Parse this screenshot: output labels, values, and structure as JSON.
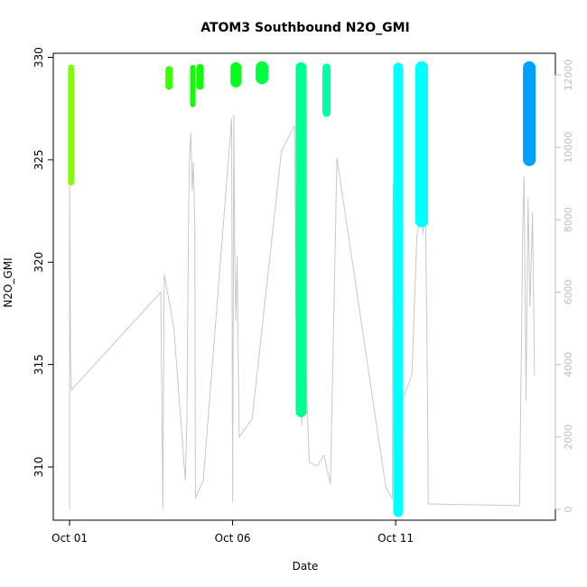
{
  "chart_data": {
    "type": "scatter",
    "title": "ATOM3 Southbound N2O_GMI",
    "xlabel": "Date",
    "ylabel": "N2O_GMI",
    "x_ticks": [
      "Oct 01",
      "Oct 06",
      "Oct 11"
    ],
    "x_tick_days": [
      1,
      6,
      11
    ],
    "xlim_days": [
      0.5,
      15.9
    ],
    "y_ticks": [
      310,
      315,
      320,
      325,
      330
    ],
    "ylim": [
      307.4,
      330.2
    ],
    "y2_ticks": [
      0,
      2000,
      4000,
      6000,
      8000,
      10000,
      12000
    ],
    "y2lim": [
      -300,
      12600
    ],
    "grid": false,
    "colors": {
      "axis": "#000000",
      "right_axis": "#bdbdbd",
      "altitude_line": "#c8c8c8"
    },
    "series": [
      {
        "day": 1.05,
        "y_min": 323.9,
        "y_max": 329.5,
        "color": "#7fff00",
        "width": 7
      },
      {
        "day": 4.05,
        "y_min": 328.6,
        "y_max": 329.4,
        "color": "#3cff00",
        "width": 8
      },
      {
        "day": 4.78,
        "y_min": 327.7,
        "y_max": 329.5,
        "color": "#10ff00",
        "width": 6
      },
      {
        "day": 5.0,
        "y_min": 328.6,
        "y_max": 329.5,
        "color": "#10ff00",
        "width": 8
      },
      {
        "day": 6.1,
        "y_min": 328.8,
        "y_max": 329.5,
        "color": "#00ff1a",
        "width": 12
      },
      {
        "day": 6.9,
        "y_min": 329.0,
        "y_max": 329.5,
        "color": "#00ff40",
        "width": 14
      },
      {
        "day": 8.1,
        "y_min": 312.7,
        "y_max": 329.5,
        "color": "#00ff90",
        "width": 12
      },
      {
        "day": 8.88,
        "y_min": 327.3,
        "y_max": 329.5,
        "color": "#00ffa5",
        "width": 9
      },
      {
        "day": 11.08,
        "y_min": 307.8,
        "y_max": 329.5,
        "color": "#00ffff",
        "width": 11
      },
      {
        "day": 11.8,
        "y_min": 322.0,
        "y_max": 329.5,
        "color": "#00ffff",
        "width": 14
      },
      {
        "day": 15.1,
        "y_min": 325.0,
        "y_max": 329.5,
        "color": "#00a0ff",
        "width": 14
      }
    ],
    "altitude_m": {
      "x": [
        1.0,
        1.0,
        1.03,
        1.06,
        3.8,
        3.86,
        3.9,
        4.2,
        4.55,
        4.6,
        4.65,
        4.68,
        4.72,
        4.76,
        4.8,
        4.84,
        4.86,
        5.1,
        5.97,
        6.0,
        6.04,
        6.07,
        6.1,
        6.14,
        6.2,
        6.6,
        7.5,
        7.9,
        7.94,
        7.98,
        8.02,
        8.06,
        8.12,
        8.2,
        8.35,
        8.6,
        8.8,
        9.0,
        9.2,
        10.7,
        10.9,
        10.92,
        10.95,
        10.98,
        11.0,
        11.03,
        11.06,
        11.1,
        11.2,
        11.5,
        11.65,
        11.72,
        11.78,
        11.84,
        11.9,
        11.98,
        12.0,
        14.8,
        14.9,
        14.94,
        15.0,
        15.06,
        15.12,
        15.2,
        15.26
      ],
      "y": [
        0,
        9000,
        4200,
        3300,
        6000,
        0,
        6500,
        5000,
        800,
        2500,
        8100,
        9800,
        10400,
        8800,
        9600,
        7800,
        300,
        800,
        10800,
        200,
        10900,
        6700,
        5200,
        7000,
        2000,
        2500,
        9900,
        10600,
        5300,
        8800,
        10300,
        5100,
        2300,
        5300,
        1300,
        1200,
        1500,
        700,
        9700,
        600,
        300,
        9000,
        4500,
        11500,
        7500,
        9600,
        8300,
        1000,
        3000,
        3700,
        7500,
        8000,
        10600,
        7600,
        9600,
        3000,
        150,
        100,
        7800,
        9200,
        3000,
        8600,
        5600,
        8200,
        3700
      ]
    }
  }
}
